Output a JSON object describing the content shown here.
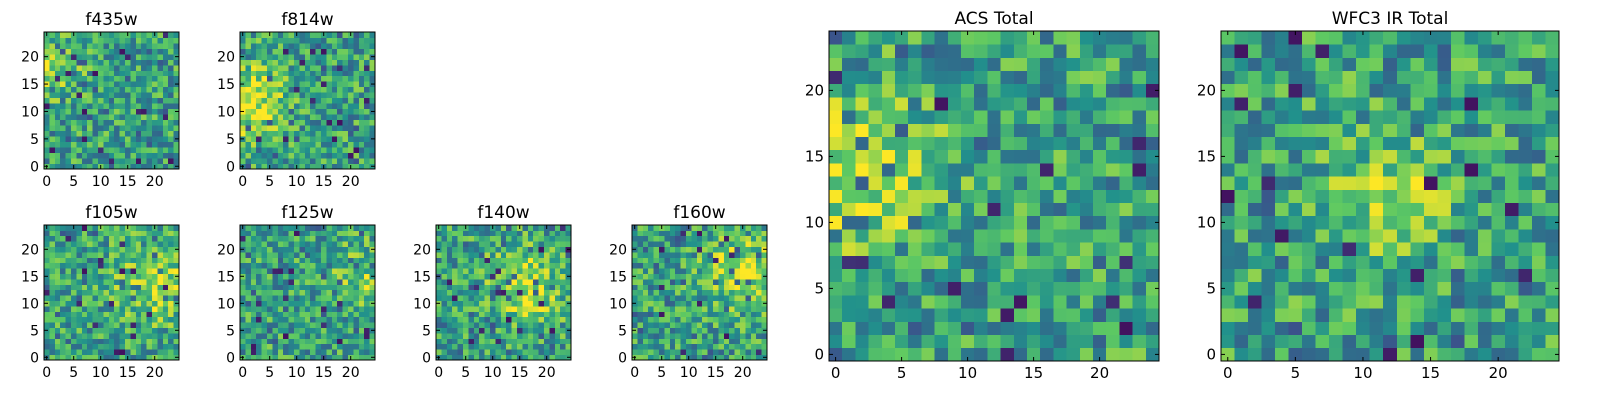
{
  "figure": {
    "background": "#ffffff",
    "colormap": "viridis",
    "colormap_stops": [
      "#440154",
      "#3b528b",
      "#21918c",
      "#5ec962",
      "#fde725"
    ]
  },
  "chart_data": [
    {
      "type": "heatmap",
      "title": "f435w",
      "grid_size": [
        25,
        25
      ],
      "xlim": [
        -0.5,
        24.5
      ],
      "ylim": [
        -0.5,
        24.5
      ],
      "xticks": [
        0,
        5,
        10,
        15,
        20
      ],
      "yticks": [
        0,
        5,
        10,
        15,
        20
      ],
      "xtick_labels": [
        "0",
        "5",
        "10",
        "15",
        "20"
      ],
      "ytick_labels": [
        "0",
        "5",
        "10",
        "15",
        "20"
      ],
      "grid": false,
      "colormap": "viridis",
      "seed": 435,
      "hotspots": [
        {
          "x": 1,
          "y": 18,
          "strength": 0.25,
          "radius": 4
        }
      ]
    },
    {
      "type": "heatmap",
      "title": "f814w",
      "grid_size": [
        25,
        25
      ],
      "xlim": [
        -0.5,
        24.5
      ],
      "ylim": [
        -0.5,
        24.5
      ],
      "xticks": [
        0,
        5,
        10,
        15,
        20
      ],
      "yticks": [
        0,
        5,
        10,
        15,
        20
      ],
      "xtick_labels": [
        "0",
        "5",
        "10",
        "15",
        "20"
      ],
      "ytick_labels": [
        "0",
        "5",
        "10",
        "15",
        "20"
      ],
      "grid": false,
      "colormap": "viridis",
      "seed": 814,
      "hotspots": [
        {
          "x": 1,
          "y": 12,
          "strength": 0.35,
          "radius": 5
        }
      ]
    },
    {
      "type": "heatmap",
      "title": "f105w",
      "grid_size": [
        25,
        25
      ],
      "xlim": [
        -0.5,
        24.5
      ],
      "ylim": [
        -0.5,
        24.5
      ],
      "xticks": [
        0,
        5,
        10,
        15,
        20
      ],
      "yticks": [
        0,
        5,
        10,
        15,
        20
      ],
      "xtick_labels": [
        "0",
        "5",
        "10",
        "15",
        "20"
      ],
      "ytick_labels": [
        "0",
        "5",
        "10",
        "15",
        "20"
      ],
      "grid": false,
      "colormap": "viridis",
      "seed": 105,
      "hotspots": [
        {
          "x": 20,
          "y": 14,
          "strength": 0.3,
          "radius": 5
        }
      ]
    },
    {
      "type": "heatmap",
      "title": "f125w",
      "grid_size": [
        25,
        25
      ],
      "xlim": [
        -0.5,
        24.5
      ],
      "ylim": [
        -0.5,
        24.5
      ],
      "xticks": [
        0,
        5,
        10,
        15,
        20
      ],
      "yticks": [
        0,
        5,
        10,
        15,
        20
      ],
      "xtick_labels": [
        "0",
        "5",
        "10",
        "15",
        "20"
      ],
      "ytick_labels": [
        "0",
        "5",
        "10",
        "15",
        "20"
      ],
      "grid": false,
      "colormap": "viridis",
      "seed": 125,
      "hotspots": [
        {
          "x": 22,
          "y": 15,
          "strength": 0.2,
          "radius": 4
        }
      ]
    },
    {
      "type": "heatmap",
      "title": "f140w",
      "grid_size": [
        25,
        25
      ],
      "xlim": [
        -0.5,
        24.5
      ],
      "ylim": [
        -0.5,
        24.5
      ],
      "xticks": [
        0,
        5,
        10,
        15,
        20
      ],
      "yticks": [
        0,
        5,
        10,
        15,
        20
      ],
      "xtick_labels": [
        "0",
        "5",
        "10",
        "15",
        "20"
      ],
      "ytick_labels": [
        "0",
        "5",
        "10",
        "15",
        "20"
      ],
      "grid": false,
      "colormap": "viridis",
      "seed": 140,
      "hotspots": [
        {
          "x": 16,
          "y": 13,
          "strength": 0.3,
          "radius": 5
        }
      ]
    },
    {
      "type": "heatmap",
      "title": "f160w",
      "grid_size": [
        25,
        25
      ],
      "xlim": [
        -0.5,
        24.5
      ],
      "ylim": [
        -0.5,
        24.5
      ],
      "xticks": [
        0,
        5,
        10,
        15,
        20
      ],
      "yticks": [
        0,
        5,
        10,
        15,
        20
      ],
      "xtick_labels": [
        "0",
        "5",
        "10",
        "15",
        "20"
      ],
      "ytick_labels": [
        "0",
        "5",
        "10",
        "15",
        "20"
      ],
      "grid": false,
      "colormap": "viridis",
      "seed": 160,
      "hotspots": [
        {
          "x": 20,
          "y": 16,
          "strength": 0.3,
          "radius": 5
        }
      ]
    },
    {
      "type": "heatmap",
      "title": "ACS Total",
      "grid_size": [
        25,
        25
      ],
      "xlim": [
        -0.5,
        24.5
      ],
      "ylim": [
        -0.5,
        24.5
      ],
      "xticks": [
        0,
        5,
        10,
        15,
        20
      ],
      "yticks": [
        0,
        5,
        10,
        15,
        20
      ],
      "xtick_labels": [
        "0",
        "5",
        "10",
        "15",
        "20"
      ],
      "ytick_labels": [
        "0",
        "5",
        "10",
        "15",
        "20"
      ],
      "grid": false,
      "colormap": "viridis",
      "seed": 777,
      "hotspots": [
        {
          "x": 2,
          "y": 14,
          "strength": 0.35,
          "radius": 4
        }
      ]
    },
    {
      "type": "heatmap",
      "title": "WFC3 IR Total",
      "grid_size": [
        25,
        25
      ],
      "xlim": [
        -0.5,
        24.5
      ],
      "ylim": [
        -0.5,
        24.5
      ],
      "xticks": [
        0,
        5,
        10,
        15,
        20
      ],
      "yticks": [
        0,
        5,
        10,
        15,
        20
      ],
      "xtick_labels": [
        "0",
        "5",
        "10",
        "15",
        "20"
      ],
      "ytick_labels": [
        "0",
        "5",
        "10",
        "15",
        "20"
      ],
      "grid": false,
      "colormap": "viridis",
      "seed": 999,
      "hotspots": [
        {
          "x": 12,
          "y": 12,
          "strength": 0.3,
          "radius": 3
        }
      ]
    }
  ]
}
